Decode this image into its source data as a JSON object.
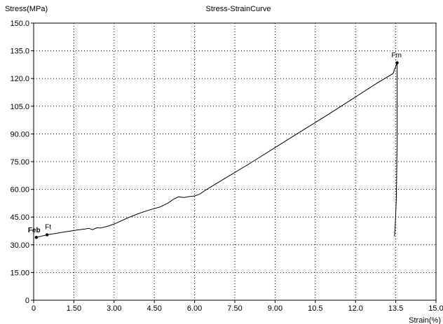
{
  "chart_data": {
    "type": "line",
    "title": "Stress-StrainCurve",
    "xlabel": "Strain(%)",
    "ylabel": "Stress(MPa)",
    "xlim": [
      0,
      15.0
    ],
    "ylim": [
      0,
      150.0
    ],
    "x_ticks": [
      "0",
      "1.50",
      "3.00",
      "4.50",
      "6.00",
      "7.50",
      "9.00",
      "10.5",
      "12.0",
      "13.5",
      "15.0"
    ],
    "y_ticks": [
      "0",
      "15.00",
      "30.00",
      "45.00",
      "60.00",
      "75.00",
      "90.00",
      "105.0",
      "120.0",
      "135.0",
      "150.0"
    ],
    "grid": true,
    "grid_style": "dotted",
    "series": [
      {
        "color": "#000000",
        "x": [
          0.1,
          0.3,
          0.5,
          0.8,
          1.1,
          1.4,
          1.7,
          1.9,
          2.05,
          2.2,
          2.35,
          2.5,
          2.8,
          3.1,
          3.5,
          3.9,
          4.3,
          4.7,
          5.0,
          5.2,
          5.4,
          5.6,
          5.8,
          6.0,
          6.2,
          6.4,
          7.0,
          8.0,
          9.0,
          10.0,
          11.0,
          12.0,
          12.8,
          13.4,
          13.55,
          13.55,
          13.52,
          13.48,
          13.45
        ],
        "y": [
          34.0,
          34.7,
          35.4,
          36.1,
          36.8,
          37.5,
          38.2,
          38.5,
          38.9,
          38.2,
          39.2,
          39.1,
          40.2,
          41.8,
          44.5,
          46.8,
          48.8,
          50.4,
          52.5,
          54.5,
          56.0,
          55.6,
          56.1,
          56.4,
          57.5,
          59.5,
          64.8,
          73.5,
          82.6,
          91.7,
          100.7,
          110.0,
          117.5,
          122.7,
          128.5,
          85.0,
          55.0,
          40.0,
          34.5
        ]
      }
    ],
    "annotations": [
      {
        "label": "Feb",
        "x": 0.1,
        "y": 34.0
      },
      {
        "label": "Ft",
        "x": 0.5,
        "y": 35.4
      },
      {
        "label": "Fm",
        "x": 13.55,
        "y": 128.5
      }
    ]
  }
}
